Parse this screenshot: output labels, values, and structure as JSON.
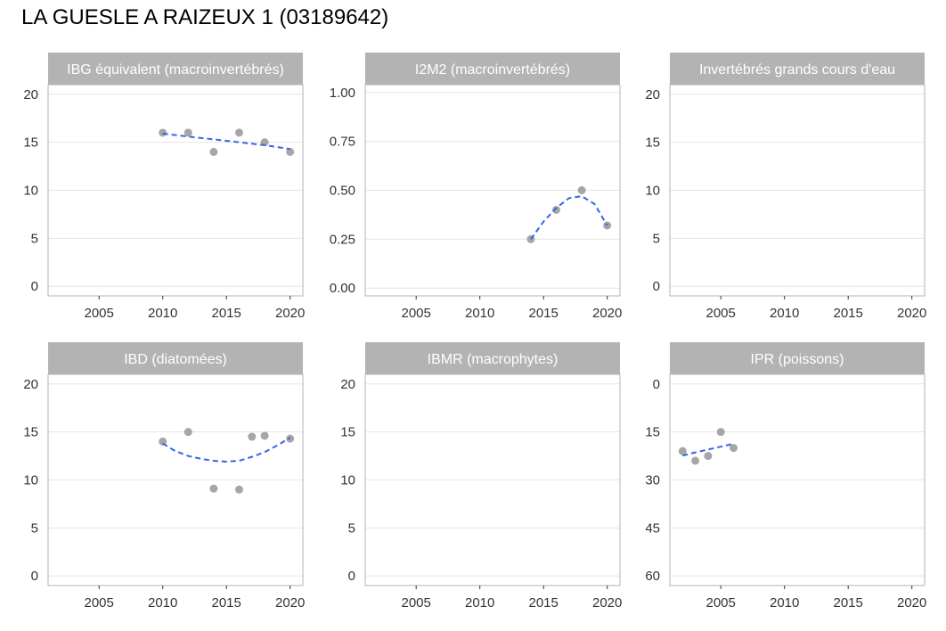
{
  "page": {
    "title": "LA GUESLE A RAIZEUX 1 (03189642)"
  },
  "colors": {
    "points": "#a6a6a6",
    "trend": "#3366e6",
    "strip": "#b3b3b3",
    "grid": "#e5e5e5",
    "frame": "#b3b3b3"
  },
  "chart_data": [
    {
      "type": "scatter",
      "title": "IBG équivalent (macroinvertébrés)",
      "xlim": [
        2001,
        2021
      ],
      "ylim": [
        -1,
        21
      ],
      "xticks": [
        2005,
        2010,
        2015,
        2020
      ],
      "yticks": [
        0,
        5,
        10,
        15,
        20
      ],
      "ytick_labels": [
        "0",
        "5",
        "10",
        "15",
        "20"
      ],
      "points": [
        [
          2010,
          16
        ],
        [
          2012,
          16
        ],
        [
          2014,
          14
        ],
        [
          2016,
          16
        ],
        [
          2018,
          15
        ],
        [
          2020,
          14
        ]
      ],
      "trend": [
        [
          2010,
          15.9
        ],
        [
          2012,
          15.6
        ],
        [
          2014,
          15.3
        ],
        [
          2016,
          15.0
        ],
        [
          2018,
          14.7
        ],
        [
          2020,
          14.3
        ]
      ]
    },
    {
      "type": "scatter",
      "title": "I2M2 (macroinvertébrés)",
      "xlim": [
        2001,
        2021
      ],
      "ylim": [
        -0.04,
        1.04
      ],
      "xticks": [
        2005,
        2010,
        2015,
        2020
      ],
      "yticks": [
        0,
        0.25,
        0.5,
        0.75,
        1.0
      ],
      "ytick_labels": [
        "0.00",
        "0.25",
        "0.50",
        "0.75",
        "1.00"
      ],
      "points": [
        [
          2014,
          0.25
        ],
        [
          2016,
          0.4
        ],
        [
          2018,
          0.5
        ],
        [
          2020,
          0.32
        ]
      ],
      "trend": [
        [
          2014,
          0.25
        ],
        [
          2015,
          0.34
        ],
        [
          2016,
          0.41
        ],
        [
          2017,
          0.46
        ],
        [
          2018,
          0.47
        ],
        [
          2019,
          0.43
        ],
        [
          2020,
          0.32
        ]
      ]
    },
    {
      "type": "scatter",
      "title": "Invertébrés grands cours d'eau",
      "xlim": [
        2001,
        2021
      ],
      "ylim": [
        -1,
        21
      ],
      "xticks": [
        2005,
        2010,
        2015,
        2020
      ],
      "yticks": [
        0,
        5,
        10,
        15,
        20
      ],
      "ytick_labels": [
        "0",
        "5",
        "10",
        "15",
        "20"
      ],
      "points": [],
      "trend": []
    },
    {
      "type": "scatter",
      "title": "IBD (diatomées)",
      "xlim": [
        2001,
        2021
      ],
      "ylim": [
        -1,
        21
      ],
      "xticks": [
        2005,
        2010,
        2015,
        2020
      ],
      "yticks": [
        0,
        5,
        10,
        15,
        20
      ],
      "ytick_labels": [
        "0",
        "5",
        "10",
        "15",
        "20"
      ],
      "points": [
        [
          2010,
          14
        ],
        [
          2012,
          15
        ],
        [
          2014,
          9.1
        ],
        [
          2016,
          9
        ],
        [
          2017,
          14.5
        ],
        [
          2018,
          14.6
        ],
        [
          2020,
          14.3
        ]
      ],
      "trend": [
        [
          2010,
          13.8
        ],
        [
          2011,
          13.0
        ],
        [
          2012,
          12.5
        ],
        [
          2013,
          12.2
        ],
        [
          2014,
          12.0
        ],
        [
          2015,
          11.9
        ],
        [
          2016,
          12.0
        ],
        [
          2017,
          12.4
        ],
        [
          2018,
          12.9
        ],
        [
          2019,
          13.6
        ],
        [
          2020,
          14.4
        ]
      ]
    },
    {
      "type": "scatter",
      "title": "IBMR (macrophytes)",
      "xlim": [
        2001,
        2021
      ],
      "ylim": [
        -1,
        21
      ],
      "xticks": [
        2005,
        2010,
        2015,
        2020
      ],
      "yticks": [
        0,
        5,
        10,
        15,
        20
      ],
      "ytick_labels": [
        "0",
        "5",
        "10",
        "15",
        "20"
      ],
      "points": [],
      "trend": []
    },
    {
      "type": "scatter",
      "title": "IPR (poissons)",
      "xlim": [
        2001,
        2021
      ],
      "ylim": [
        -3,
        63
      ],
      "y_reversed": true,
      "xticks": [
        2005,
        2010,
        2015,
        2020
      ],
      "yticks": [
        0,
        15,
        30,
        45,
        60
      ],
      "ytick_labels": [
        "0",
        "15",
        "30",
        "45",
        "60"
      ],
      "points": [
        [
          2002,
          21
        ],
        [
          2003,
          24
        ],
        [
          2004,
          22.5
        ],
        [
          2005,
          15
        ],
        [
          2006,
          20
        ]
      ],
      "trend": [
        [
          2002,
          22.4
        ],
        [
          2003,
          21.4
        ],
        [
          2004,
          20.5
        ],
        [
          2005,
          19.6
        ],
        [
          2006,
          18.7
        ]
      ]
    }
  ]
}
